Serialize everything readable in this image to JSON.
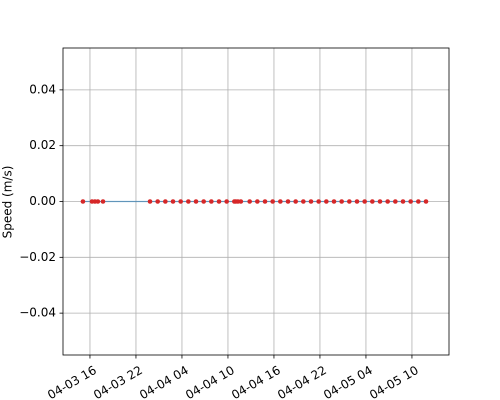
{
  "chart_data": {
    "type": "line",
    "ylabel": "Speed (m/s)",
    "x": [
      "04-03 15:05",
      "04-03 16:16",
      "04-03 16:39",
      "04-03 17:02",
      "04-03 17:42",
      "04-03 23:50",
      "04-04 00:50",
      "04-04 01:50",
      "04-04 02:50",
      "04-04 03:50",
      "04-04 04:50",
      "04-04 05:50",
      "04-04 06:50",
      "04-04 07:50",
      "04-04 08:50",
      "04-04 09:50",
      "04-04 10:50",
      "04-04 11:02",
      "04-04 11:18",
      "04-04 11:41",
      "04-04 12:50",
      "04-04 13:50",
      "04-04 14:50",
      "04-04 15:50",
      "04-04 16:50",
      "04-04 17:50",
      "04-04 18:50",
      "04-04 19:50",
      "04-04 20:50",
      "04-04 21:50",
      "04-04 22:50",
      "04-04 23:50",
      "04-05 00:50",
      "04-05 01:50",
      "04-05 02:50",
      "04-05 03:50",
      "04-05 04:50",
      "04-05 05:50",
      "04-05 06:50",
      "04-05 07:50",
      "04-05 08:50",
      "04-05 09:50",
      "04-05 10:50",
      "04-05 11:50"
    ],
    "series": [
      {
        "color": "#1f77b4",
        "marker_color": "#d62728",
        "values": [
          0,
          0,
          0,
          0,
          0,
          0,
          0,
          0,
          0,
          0,
          0,
          0,
          0,
          0,
          0,
          0,
          0,
          0,
          0,
          0,
          0,
          0,
          0,
          0,
          0,
          0,
          0,
          0,
          0,
          0,
          0,
          0,
          0,
          0,
          0,
          0,
          0,
          0,
          0,
          0,
          0,
          0,
          0,
          0
        ]
      }
    ],
    "xlim": [
      "04-03 12:29",
      "04-05 14:50"
    ],
    "xticks": [
      "04-03 16",
      "04-03 22",
      "04-04 04",
      "04-04 10",
      "04-04 16",
      "04-04 22",
      "04-05 04",
      "04-05 10"
    ],
    "ylim": [
      -0.055,
      0.055
    ],
    "yticks": [
      {
        "value": -0.04,
        "label": "−0.04"
      },
      {
        "value": -0.02,
        "label": "−0.02"
      },
      {
        "value": 0,
        "label": "0.00"
      },
      {
        "value": 0.02,
        "label": "0.02"
      },
      {
        "value": 0.04,
        "label": "0.04"
      }
    ],
    "grid": true
  }
}
